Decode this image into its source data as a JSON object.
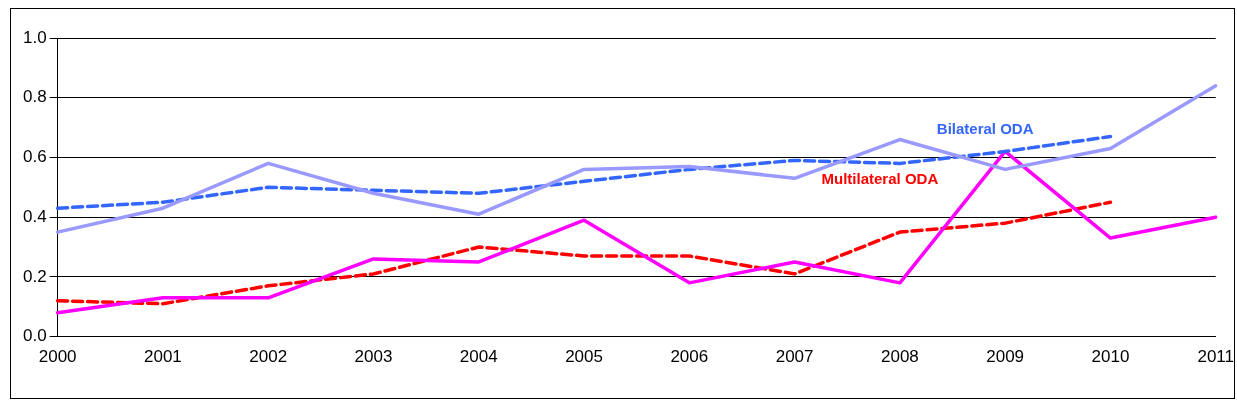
{
  "chart_data": {
    "type": "line",
    "categories": [
      "2000",
      "2001",
      "2002",
      "2003",
      "2004",
      "2005",
      "2006",
      "2007",
      "2008",
      "2009",
      "2010",
      "2011"
    ],
    "series": [
      {
        "color": "#9999ff",
        "values": [
          0.35,
          0.43,
          0.58,
          0.48,
          0.41,
          0.56,
          0.57,
          0.53,
          0.66,
          0.56,
          0.63,
          0.84
        ]
      },
      {
        "name": "Bilateral ODA",
        "color": "#3366ff",
        "line_style": "dashed",
        "values": [
          0.43,
          0.45,
          0.5,
          0.49,
          0.48,
          0.52,
          0.56,
          0.59,
          0.58,
          0.62,
          0.67,
          null
        ]
      },
      {
        "color": "#ff00ff",
        "values": [
          0.08,
          0.13,
          0.13,
          0.26,
          0.25,
          0.39,
          0.18,
          0.25,
          0.18,
          0.62,
          0.33,
          0.4
        ]
      },
      {
        "name": "Multilateral ODA",
        "color": "#ff0000",
        "line_style": "dashed",
        "values": [
          0.12,
          0.11,
          0.17,
          0.21,
          0.3,
          0.27,
          0.27,
          0.21,
          0.35,
          0.38,
          0.45,
          null
        ]
      }
    ],
    "ylim": [
      0,
      1
    ],
    "yticks": [
      {
        "value": 0,
        "label": "0.0"
      },
      {
        "value": 0.2,
        "label": "0.2"
      },
      {
        "value": 0.4,
        "label": "0.4"
      },
      {
        "value": 0.6,
        "label": "0.6"
      },
      {
        "value": 0.8,
        "label": "0.8"
      },
      {
        "value": 1,
        "label": "1.0"
      }
    ],
    "grid": "y",
    "legend": false,
    "marker": "none",
    "line_style": "solid"
  }
}
